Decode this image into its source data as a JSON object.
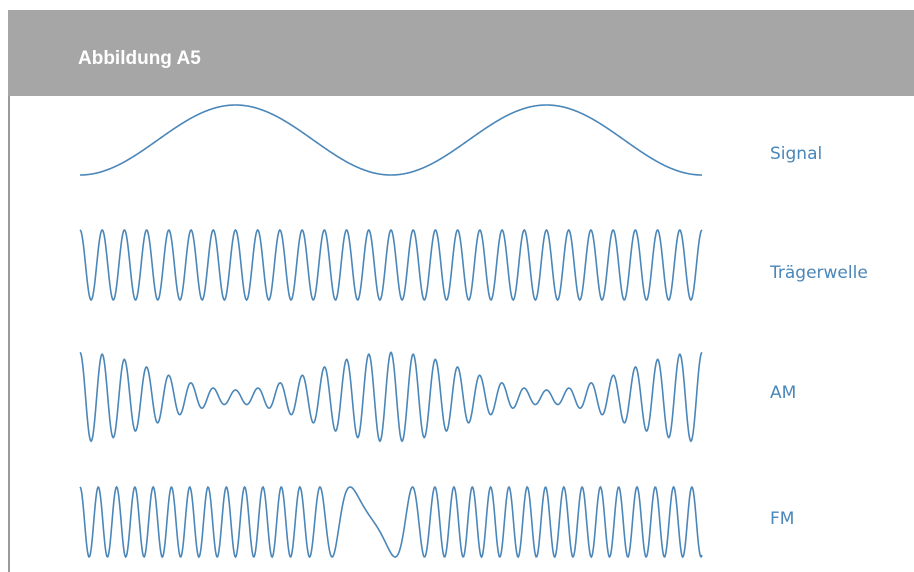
{
  "header": {
    "title": "Abbildung A5"
  },
  "waves": [
    {
      "label": "Signal"
    },
    {
      "label": "Trägerwelle"
    },
    {
      "label": "AM"
    },
    {
      "label": "FM"
    }
  ],
  "colors": {
    "wave": "#4a86b8",
    "header_bg": "#a6a6a6",
    "label": "#4a86b8"
  }
}
